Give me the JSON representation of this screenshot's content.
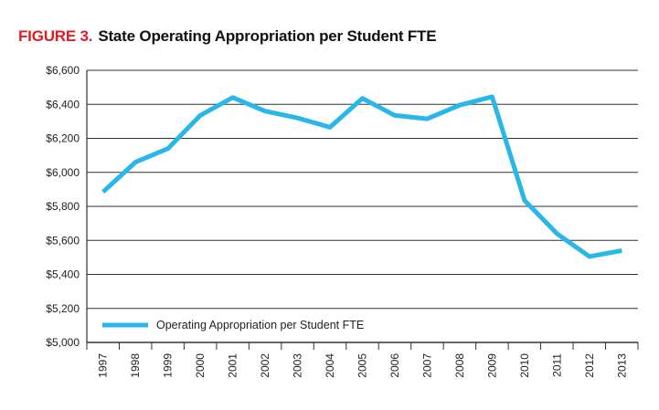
{
  "figure": {
    "label": "FIGURE 3.",
    "title": "State Operating Appropriation per Student FTE"
  },
  "colors": {
    "accent_red": "#e31b23",
    "line": "#29b6e8",
    "grid": "#333333"
  },
  "chart_data": {
    "type": "line",
    "title": "State Operating Appropriation per Student FTE",
    "xlabel": "",
    "ylabel": "",
    "ylim": [
      5000,
      6600
    ],
    "yticks": [
      "$5,000",
      "$5,200",
      "$5,400",
      "$5,600",
      "$5,800",
      "$6,000",
      "$6,200",
      "$6,400",
      "$6,600"
    ],
    "ytick_values": [
      5000,
      5200,
      5400,
      5600,
      5800,
      6000,
      6200,
      6400,
      6600
    ],
    "categories": [
      "1997",
      "1998",
      "1999",
      "2000",
      "2001",
      "2002",
      "2003",
      "2004",
      "2005",
      "2006",
      "2007",
      "2008",
      "2009",
      "2010",
      "2011",
      "2012",
      "2013"
    ],
    "grid": "horizontal",
    "legend_position": "bottom-left",
    "series": [
      {
        "name": "Operating Appropriation per Student FTE",
        "values": [
          5885,
          6060,
          6140,
          6335,
          6440,
          6360,
          6320,
          6265,
          6435,
          6335,
          6315,
          6395,
          6445,
          5835,
          5640,
          5505,
          5540
        ]
      }
    ]
  }
}
